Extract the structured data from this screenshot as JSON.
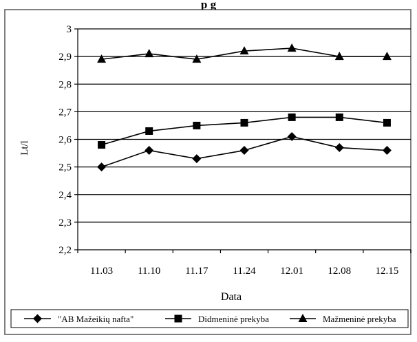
{
  "chart_data": {
    "type": "line",
    "title": "",
    "title_visible_fragment": "p      g",
    "xlabel": "Data",
    "ylabel": "Lt/l",
    "ylim": [
      2.2,
      3.0
    ],
    "yticks": [
      "2,2",
      "2,3",
      "2,4",
      "2,5",
      "2,6",
      "2,7",
      "2,8",
      "2,9",
      "3"
    ],
    "categories": [
      "11.03",
      "11.10",
      "11.17",
      "11.24",
      "12.01",
      "12.08",
      "12.15"
    ],
    "grid": "horizontal",
    "legend_position": "bottom",
    "series": [
      {
        "name": "\"AB Mažeikių nafta\"",
        "marker": "diamond",
        "values": [
          2.5,
          2.56,
          2.53,
          2.56,
          2.61,
          2.57,
          2.56
        ]
      },
      {
        "name": "Didmeninė prekyba",
        "marker": "square",
        "values": [
          2.58,
          2.63,
          2.65,
          2.66,
          2.68,
          2.68,
          2.66
        ]
      },
      {
        "name": "Mažmeninė prekyba",
        "marker": "triangle",
        "values": [
          2.89,
          2.91,
          2.89,
          2.92,
          2.93,
          2.9,
          2.9
        ]
      }
    ]
  }
}
